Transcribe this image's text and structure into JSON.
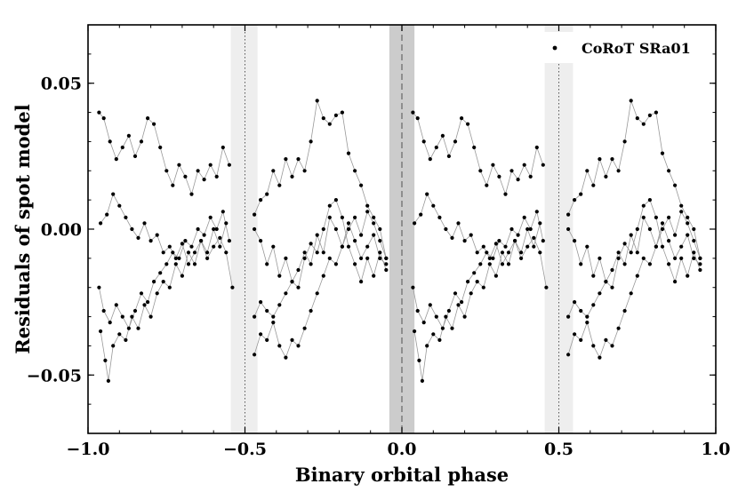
{
  "chart_data": {
    "type": "scatter",
    "xlabel": "Binary orbital phase",
    "ylabel": "Residuals of spot model",
    "xlim": [
      -1.0,
      1.0
    ],
    "ylim": [
      -0.07,
      0.07
    ],
    "xticks": [
      -1.0,
      -0.5,
      0.0,
      0.5,
      1.0
    ],
    "xtick_labels": [
      "−1.0",
      "−0.5",
      "0.0",
      "0.5",
      "1.0"
    ],
    "yticks": [
      -0.05,
      0.0,
      0.05
    ],
    "ytick_labels": [
      "−0.05",
      "0.00",
      "0.05"
    ],
    "legend": {
      "label": "CoRoT SRa01",
      "position": "top-right"
    },
    "grid": false,
    "eclipse_bands": [
      {
        "name": "primary-eclipse",
        "from": -0.04,
        "to": 0.04,
        "center": 0.0,
        "color": "#cccccc",
        "center_line": "dashed"
      },
      {
        "name": "secondary-eclipse-left",
        "from": -0.545,
        "to": -0.46,
        "center": -0.5,
        "color": "#eeeeee",
        "center_line": "dotted"
      },
      {
        "name": "secondary-eclipse-right",
        "from": 0.455,
        "to": 0.545,
        "center": 0.5,
        "color": "#eeeeee",
        "center_line": "dotted"
      }
    ],
    "series": [
      {
        "name": "CoRoT SRa01",
        "color": "#000000",
        "line_color": "#999999",
        "segments": [
          {
            "x": [
              -0.965,
              -0.95,
              -0.93,
              -0.91,
              -0.89,
              -0.87,
              -0.85,
              -0.83,
              -0.81,
              -0.79,
              -0.77,
              -0.75,
              -0.73,
              -0.71,
              -0.69,
              -0.67,
              -0.65,
              -0.63,
              -0.61,
              -0.59,
              -0.57,
              -0.55
            ],
            "y": [
              0.04,
              0.038,
              0.03,
              0.024,
              0.028,
              0.032,
              0.025,
              0.03,
              0.038,
              0.036,
              0.028,
              0.02,
              0.015,
              0.022,
              0.018,
              0.012,
              0.02,
              0.017,
              0.022,
              0.018,
              0.028,
              0.022
            ]
          },
          {
            "x": [
              -0.96,
              -0.94,
              -0.92,
              -0.9,
              -0.88,
              -0.86,
              -0.84,
              -0.82,
              -0.8,
              -0.78,
              -0.76,
              -0.74,
              -0.72,
              -0.7,
              -0.68,
              -0.66,
              -0.64,
              -0.62,
              -0.6,
              -0.58,
              -0.56,
              -0.54
            ],
            "y": [
              0.002,
              0.005,
              0.012,
              0.008,
              0.004,
              0.0,
              -0.003,
              0.002,
              -0.004,
              -0.002,
              -0.008,
              -0.006,
              -0.01,
              -0.005,
              -0.012,
              -0.008,
              -0.004,
              -0.01,
              -0.006,
              -0.003,
              -0.008,
              -0.02
            ]
          },
          {
            "x": [
              -0.965,
              -0.95,
              -0.93,
              -0.91,
              -0.89,
              -0.87,
              -0.85,
              -0.83,
              -0.81,
              -0.79,
              -0.77,
              -0.75,
              -0.73,
              -0.71,
              -0.69,
              -0.67,
              -0.65,
              -0.63,
              -0.61,
              -0.59,
              -0.57,
              -0.55
            ],
            "y": [
              -0.02,
              -0.028,
              -0.032,
              -0.026,
              -0.03,
              -0.034,
              -0.028,
              -0.022,
              -0.025,
              -0.018,
              -0.015,
              -0.012,
              -0.008,
              -0.01,
              -0.004,
              -0.006,
              0.0,
              -0.002,
              0.004,
              0.0,
              0.006,
              -0.004
            ]
          },
          {
            "x": [
              -0.96,
              -0.945,
              -0.935,
              -0.92,
              -0.9,
              -0.88,
              -0.86,
              -0.84,
              -0.82,
              -0.8,
              -0.78,
              -0.76,
              -0.74,
              -0.72,
              -0.7,
              -0.68,
              -0.66,
              -0.64,
              -0.62,
              -0.6,
              -0.58,
              -0.56
            ],
            "y": [
              -0.035,
              -0.045,
              -0.052,
              -0.04,
              -0.036,
              -0.038,
              -0.03,
              -0.034,
              -0.026,
              -0.03,
              -0.022,
              -0.018,
              -0.02,
              -0.012,
              -0.016,
              -0.008,
              -0.012,
              -0.004,
              -0.008,
              0.0,
              -0.006,
              0.002
            ]
          },
          {
            "x": [
              -0.47,
              -0.45,
              -0.43,
              -0.41,
              -0.39,
              -0.37,
              -0.35,
              -0.33,
              -0.31,
              -0.29,
              -0.27,
              -0.25,
              -0.23,
              -0.21,
              -0.19,
              -0.17,
              -0.15,
              -0.13,
              -0.11,
              -0.09,
              -0.07,
              -0.05
            ],
            "y": [
              0.005,
              0.01,
              0.012,
              0.02,
              0.015,
              0.024,
              0.018,
              0.024,
              0.02,
              0.03,
              0.044,
              0.038,
              0.036,
              0.039,
              0.04,
              0.026,
              0.02,
              0.015,
              0.008,
              0.004,
              0.0,
              -0.01
            ]
          },
          {
            "x": [
              -0.47,
              -0.45,
              -0.43,
              -0.41,
              -0.39,
              -0.37,
              -0.35,
              -0.33,
              -0.31,
              -0.29,
              -0.27,
              -0.25,
              -0.23,
              -0.21,
              -0.19,
              -0.17,
              -0.15,
              -0.13,
              -0.11,
              -0.09,
              -0.07,
              -0.05
            ],
            "y": [
              0.0,
              -0.004,
              -0.012,
              -0.006,
              -0.016,
              -0.01,
              -0.018,
              -0.014,
              -0.008,
              -0.012,
              -0.002,
              -0.008,
              0.004,
              0.0,
              -0.006,
              0.002,
              -0.004,
              -0.01,
              -0.006,
              -0.002,
              -0.01,
              -0.012
            ]
          },
          {
            "x": [
              -0.47,
              -0.45,
              -0.43,
              -0.41,
              -0.39,
              -0.37,
              -0.35,
              -0.33,
              -0.31,
              -0.29,
              -0.27,
              -0.25,
              -0.23,
              -0.21,
              -0.19,
              -0.17,
              -0.15,
              -0.13,
              -0.11,
              -0.09,
              -0.07,
              -0.05
            ],
            "y": [
              -0.03,
              -0.025,
              -0.028,
              -0.03,
              -0.026,
              -0.022,
              -0.018,
              -0.02,
              -0.01,
              -0.005,
              -0.008,
              0.0,
              0.008,
              0.01,
              0.004,
              -0.006,
              -0.012,
              -0.018,
              -0.01,
              -0.016,
              -0.008,
              -0.014
            ]
          },
          {
            "x": [
              -0.47,
              -0.45,
              -0.43,
              -0.41,
              -0.39,
              -0.37,
              -0.35,
              -0.33,
              -0.31,
              -0.29,
              -0.27,
              -0.25,
              -0.23,
              -0.21,
              -0.19,
              -0.17,
              -0.15,
              -0.13,
              -0.11,
              -0.09,
              -0.07,
              -0.05
            ],
            "y": [
              -0.043,
              -0.036,
              -0.038,
              -0.032,
              -0.04,
              -0.044,
              -0.038,
              -0.04,
              -0.034,
              -0.028,
              -0.022,
              -0.016,
              -0.01,
              -0.012,
              -0.006,
              0.0,
              0.004,
              -0.002,
              0.006,
              0.002,
              -0.004,
              -0.01
            ]
          },
          {
            "x": [
              0.035,
              0.05,
              0.07,
              0.09,
              0.11,
              0.13,
              0.15,
              0.17,
              0.19,
              0.21,
              0.23,
              0.25,
              0.27,
              0.29,
              0.31,
              0.33,
              0.35,
              0.37,
              0.39,
              0.41,
              0.43,
              0.45
            ],
            "y": [
              0.04,
              0.038,
              0.03,
              0.024,
              0.028,
              0.032,
              0.025,
              0.03,
              0.038,
              0.036,
              0.028,
              0.02,
              0.015,
              0.022,
              0.018,
              0.012,
              0.02,
              0.017,
              0.022,
              0.018,
              0.028,
              0.022
            ]
          },
          {
            "x": [
              0.04,
              0.06,
              0.08,
              0.1,
              0.12,
              0.14,
              0.16,
              0.18,
              0.2,
              0.22,
              0.24,
              0.26,
              0.28,
              0.3,
              0.32,
              0.34,
              0.36,
              0.38,
              0.4,
              0.42,
              0.44,
              0.46
            ],
            "y": [
              0.002,
              0.005,
              0.012,
              0.008,
              0.004,
              0.0,
              -0.003,
              0.002,
              -0.004,
              -0.002,
              -0.008,
              -0.006,
              -0.01,
              -0.005,
              -0.012,
              -0.008,
              -0.004,
              -0.01,
              -0.006,
              -0.003,
              -0.008,
              -0.02
            ]
          },
          {
            "x": [
              0.035,
              0.05,
              0.07,
              0.09,
              0.11,
              0.13,
              0.15,
              0.17,
              0.19,
              0.21,
              0.23,
              0.25,
              0.27,
              0.29,
              0.31,
              0.33,
              0.35,
              0.37,
              0.39,
              0.41,
              0.43,
              0.45
            ],
            "y": [
              -0.02,
              -0.028,
              -0.032,
              -0.026,
              -0.03,
              -0.034,
              -0.028,
              -0.022,
              -0.025,
              -0.018,
              -0.015,
              -0.012,
              -0.008,
              -0.01,
              -0.004,
              -0.006,
              0.0,
              -0.002,
              0.004,
              0.0,
              0.006,
              -0.004
            ]
          },
          {
            "x": [
              0.04,
              0.055,
              0.065,
              0.08,
              0.1,
              0.12,
              0.14,
              0.16,
              0.18,
              0.2,
              0.22,
              0.24,
              0.26,
              0.28,
              0.3,
              0.32,
              0.34,
              0.36,
              0.38,
              0.4,
              0.42,
              0.44
            ],
            "y": [
              -0.035,
              -0.045,
              -0.052,
              -0.04,
              -0.036,
              -0.038,
              -0.03,
              -0.034,
              -0.026,
              -0.03,
              -0.022,
              -0.018,
              -0.02,
              -0.012,
              -0.016,
              -0.008,
              -0.012,
              -0.004,
              -0.008,
              0.0,
              -0.006,
              0.002
            ]
          },
          {
            "x": [
              0.53,
              0.55,
              0.57,
              0.59,
              0.61,
              0.63,
              0.65,
              0.67,
              0.69,
              0.71,
              0.73,
              0.75,
              0.77,
              0.79,
              0.81,
              0.83,
              0.85,
              0.87,
              0.89,
              0.91,
              0.93,
              0.95
            ],
            "y": [
              0.005,
              0.01,
              0.012,
              0.02,
              0.015,
              0.024,
              0.018,
              0.024,
              0.02,
              0.03,
              0.044,
              0.038,
              0.036,
              0.039,
              0.04,
              0.026,
              0.02,
              0.015,
              0.008,
              0.004,
              0.0,
              -0.01
            ]
          },
          {
            "x": [
              0.53,
              0.55,
              0.57,
              0.59,
              0.61,
              0.63,
              0.65,
              0.67,
              0.69,
              0.71,
              0.73,
              0.75,
              0.77,
              0.79,
              0.81,
              0.83,
              0.85,
              0.87,
              0.89,
              0.91,
              0.93,
              0.95
            ],
            "y": [
              0.0,
              -0.004,
              -0.012,
              -0.006,
              -0.016,
              -0.01,
              -0.018,
              -0.014,
              -0.008,
              -0.012,
              -0.002,
              -0.008,
              0.004,
              0.0,
              -0.006,
              0.002,
              -0.004,
              -0.01,
              -0.006,
              -0.002,
              -0.01,
              -0.012
            ]
          },
          {
            "x": [
              0.53,
              0.55,
              0.57,
              0.59,
              0.61,
              0.63,
              0.65,
              0.67,
              0.69,
              0.71,
              0.73,
              0.75,
              0.77,
              0.79,
              0.81,
              0.83,
              0.85,
              0.87,
              0.89,
              0.91,
              0.93,
              0.95
            ],
            "y": [
              -0.03,
              -0.025,
              -0.028,
              -0.03,
              -0.026,
              -0.022,
              -0.018,
              -0.02,
              -0.01,
              -0.005,
              -0.008,
              0.0,
              0.008,
              0.01,
              0.004,
              -0.006,
              -0.012,
              -0.018,
              -0.01,
              -0.016,
              -0.008,
              -0.014
            ]
          },
          {
            "x": [
              0.53,
              0.55,
              0.57,
              0.59,
              0.61,
              0.63,
              0.65,
              0.67,
              0.69,
              0.71,
              0.73,
              0.75,
              0.77,
              0.79,
              0.81,
              0.83,
              0.85,
              0.87,
              0.89,
              0.91,
              0.93,
              0.95
            ],
            "y": [
              -0.043,
              -0.036,
              -0.038,
              -0.032,
              -0.04,
              -0.044,
              -0.038,
              -0.04,
              -0.034,
              -0.028,
              -0.022,
              -0.016,
              -0.01,
              -0.012,
              -0.006,
              0.0,
              0.004,
              -0.002,
              0.006,
              0.002,
              -0.004,
              -0.01
            ]
          }
        ]
      }
    ]
  }
}
